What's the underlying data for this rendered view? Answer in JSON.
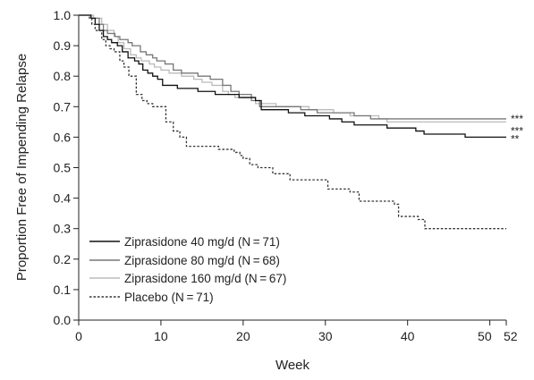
{
  "chart_data": {
    "type": "line",
    "subtype": "kaplan-meier step curves",
    "title": "",
    "xlabel": "Week",
    "ylabel": "Proportion Free of Impending Relapse",
    "xlim": [
      0,
      52
    ],
    "ylim": [
      0,
      1.0
    ],
    "x_ticks": [
      0,
      10,
      20,
      30,
      40,
      50,
      52
    ],
    "x_tick_labels": [
      "0",
      "10",
      "20",
      "30",
      "40",
      "50",
      "52"
    ],
    "y_ticks": [
      0.0,
      0.1,
      0.2,
      0.3,
      0.4,
      0.5,
      0.6,
      0.7,
      0.8,
      0.9,
      1.0
    ],
    "y_tick_labels": [
      "0.0",
      "0.1",
      "0.2",
      "0.3",
      "0.4",
      "0.5",
      "0.6",
      "0.7",
      "0.8",
      "0.9",
      "1.0"
    ],
    "grid": false,
    "legend_position": "bottom-left",
    "series": [
      {
        "name": "Ziprasidone 40 mg/d (N = 71)",
        "color": "#111111",
        "dash": "solid",
        "end_label": "**",
        "points": [
          [
            0,
            1.0
          ],
          [
            1.5,
            0.99
          ],
          [
            2,
            0.97
          ],
          [
            2.5,
            0.95
          ],
          [
            3,
            0.93
          ],
          [
            3.5,
            0.92
          ],
          [
            4,
            0.91
          ],
          [
            4.7,
            0.9
          ],
          [
            5.3,
            0.88
          ],
          [
            6,
            0.86
          ],
          [
            6.8,
            0.85
          ],
          [
            7.3,
            0.84
          ],
          [
            7.8,
            0.82
          ],
          [
            8.4,
            0.81
          ],
          [
            9,
            0.8
          ],
          [
            9.6,
            0.79
          ],
          [
            10.2,
            0.77
          ],
          [
            11.2,
            0.77
          ],
          [
            12,
            0.76
          ],
          [
            14,
            0.76
          ],
          [
            14.5,
            0.75
          ],
          [
            16,
            0.75
          ],
          [
            16.6,
            0.74
          ],
          [
            18.2,
            0.74
          ],
          [
            19.5,
            0.73
          ],
          [
            21.5,
            0.72
          ],
          [
            22.2,
            0.69
          ],
          [
            25.5,
            0.68
          ],
          [
            27.5,
            0.67
          ],
          [
            30.5,
            0.66
          ],
          [
            32,
            0.65
          ],
          [
            33.5,
            0.64
          ],
          [
            37.5,
            0.63
          ],
          [
            41,
            0.62
          ],
          [
            42,
            0.61
          ],
          [
            46,
            0.61
          ],
          [
            47,
            0.6
          ],
          [
            52,
            0.6
          ]
        ]
      },
      {
        "name": "Ziprasidone 80 mg/d (N = 68)",
        "color": "#777777",
        "dash": "solid",
        "end_label": "***",
        "points": [
          [
            0,
            1.0
          ],
          [
            1.5,
            0.99
          ],
          [
            2.5,
            0.97
          ],
          [
            3,
            0.95
          ],
          [
            3.5,
            0.94
          ],
          [
            4.4,
            0.93
          ],
          [
            5,
            0.92
          ],
          [
            6,
            0.91
          ],
          [
            6.5,
            0.9
          ],
          [
            7.5,
            0.88
          ],
          [
            8.2,
            0.87
          ],
          [
            9,
            0.86
          ],
          [
            9.5,
            0.85
          ],
          [
            10.5,
            0.84
          ],
          [
            11.5,
            0.82
          ],
          [
            12.5,
            0.81
          ],
          [
            14.5,
            0.8
          ],
          [
            16,
            0.79
          ],
          [
            17.5,
            0.77
          ],
          [
            18.5,
            0.75
          ],
          [
            19.5,
            0.74
          ],
          [
            21,
            0.72
          ],
          [
            22,
            0.7
          ],
          [
            27,
            0.69
          ],
          [
            29,
            0.68
          ],
          [
            33.5,
            0.67
          ],
          [
            35.5,
            0.66
          ],
          [
            52,
            0.66
          ]
        ]
      },
      {
        "name": "Ziprasidone 160 mg/d (N = 67)",
        "color": "#bbbbbb",
        "dash": "solid",
        "end_label": "***",
        "points": [
          [
            0,
            1.0
          ],
          [
            1.8,
            0.99
          ],
          [
            2.8,
            0.97
          ],
          [
            3.5,
            0.95
          ],
          [
            4.3,
            0.93
          ],
          [
            4.8,
            0.91
          ],
          [
            5.5,
            0.89
          ],
          [
            6.3,
            0.87
          ],
          [
            7,
            0.86
          ],
          [
            7.6,
            0.85
          ],
          [
            8.6,
            0.84
          ],
          [
            9.2,
            0.83
          ],
          [
            10,
            0.82
          ],
          [
            11,
            0.81
          ],
          [
            12.5,
            0.8
          ],
          [
            14,
            0.79
          ],
          [
            15,
            0.78
          ],
          [
            16.2,
            0.77
          ],
          [
            17.5,
            0.75
          ],
          [
            18.2,
            0.74
          ],
          [
            19,
            0.73
          ],
          [
            21.5,
            0.71
          ],
          [
            24,
            0.7
          ],
          [
            28,
            0.69
          ],
          [
            31,
            0.68
          ],
          [
            33,
            0.67
          ],
          [
            36.5,
            0.66
          ],
          [
            37.5,
            0.65
          ],
          [
            52,
            0.65
          ]
        ]
      },
      {
        "name": "Placebo (N = 71)",
        "color": "#333333",
        "dash": "dotted",
        "end_label": "",
        "points": [
          [
            0,
            1.0
          ],
          [
            1.3,
            0.99
          ],
          [
            1.6,
            0.97
          ],
          [
            2,
            0.95
          ],
          [
            2.8,
            0.92
          ],
          [
            3.3,
            0.9
          ],
          [
            3.8,
            0.89
          ],
          [
            4.3,
            0.88
          ],
          [
            5,
            0.85
          ],
          [
            5.5,
            0.83
          ],
          [
            6.1,
            0.8
          ],
          [
            7,
            0.74
          ],
          [
            7.7,
            0.72
          ],
          [
            8.3,
            0.71
          ],
          [
            9,
            0.7
          ],
          [
            10.6,
            0.65
          ],
          [
            11.5,
            0.62
          ],
          [
            12.3,
            0.6
          ],
          [
            13.1,
            0.57
          ],
          [
            16,
            0.57
          ],
          [
            17,
            0.56
          ],
          [
            18.9,
            0.55
          ],
          [
            19.6,
            0.54
          ],
          [
            20,
            0.53
          ],
          [
            20.8,
            0.51
          ],
          [
            21.8,
            0.5
          ],
          [
            23.6,
            0.48
          ],
          [
            25.7,
            0.46
          ],
          [
            30,
            0.46
          ],
          [
            30.3,
            0.43
          ],
          [
            33,
            0.42
          ],
          [
            34.1,
            0.39
          ],
          [
            38.4,
            0.38
          ],
          [
            38.9,
            0.34
          ],
          [
            41.3,
            0.33
          ],
          [
            42.1,
            0.3
          ],
          [
            52,
            0.3
          ]
        ]
      }
    ]
  }
}
